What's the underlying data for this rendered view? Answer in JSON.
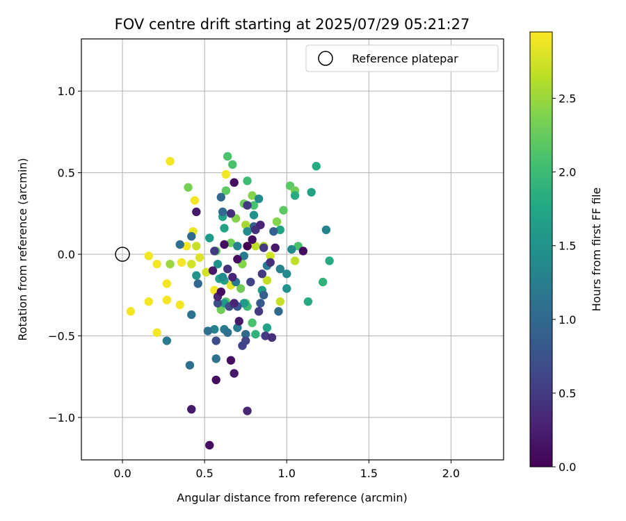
{
  "chart_data": {
    "type": "scatter",
    "title": "FOV centre drift starting at 2025/07/29 05:21:27",
    "xlabel": "Angular distance from reference (arcmin)",
    "ylabel": "Rotation from reference (arcmin)",
    "xlim": [
      -0.25,
      2.32
    ],
    "ylim": [
      -1.26,
      1.32
    ],
    "x_ticks": [
      0.0,
      0.5,
      1.0,
      1.5,
      2.0
    ],
    "x_tick_labels": [
      "0.0",
      "0.5",
      "1.0",
      "1.5",
      "2.0"
    ],
    "y_ticks": [
      -1.0,
      -0.5,
      0.0,
      0.5,
      1.0
    ],
    "y_tick_labels": [
      "−1.0",
      "−0.5",
      "0.0",
      "0.5",
      "1.0"
    ],
    "grid": true,
    "legend": {
      "placement": "top-right",
      "entries": [
        "Reference platepar"
      ]
    },
    "reference_point": {
      "x": 0.0,
      "y": 0.0,
      "style": "open-circle"
    },
    "colorbar": {
      "label": "Hours from first FF file",
      "colormap": "viridis",
      "range": [
        0.0,
        2.95
      ],
      "ticks": [
        0.0,
        0.5,
        1.0,
        1.5,
        2.0,
        2.5
      ],
      "tick_labels": [
        "0.0",
        "0.5",
        "1.0",
        "1.5",
        "2.0",
        "2.5"
      ]
    },
    "points": [
      [
        0.29,
        0.57,
        2.9
      ],
      [
        0.16,
        -0.01,
        2.9
      ],
      [
        0.21,
        -0.06,
        2.9
      ],
      [
        0.27,
        -0.18,
        2.9
      ],
      [
        0.16,
        -0.29,
        2.9
      ],
      [
        0.27,
        -0.28,
        2.9
      ],
      [
        0.35,
        -0.31,
        2.9
      ],
      [
        0.05,
        -0.35,
        2.9
      ],
      [
        0.21,
        -0.48,
        2.9
      ],
      [
        0.36,
        -0.05,
        2.9
      ],
      [
        0.39,
        0.05,
        2.9
      ],
      [
        0.43,
        0.14,
        2.85
      ],
      [
        0.44,
        0.33,
        2.9
      ],
      [
        0.63,
        0.49,
        2.9
      ],
      [
        0.56,
        -0.22,
        2.9
      ],
      [
        0.66,
        -0.19,
        2.85
      ],
      [
        0.47,
        -0.02,
        2.8
      ],
      [
        0.51,
        -0.11,
        2.75
      ],
      [
        0.42,
        -0.06,
        2.75
      ],
      [
        0.45,
        0.05,
        2.7
      ],
      [
        0.29,
        -0.06,
        2.5
      ],
      [
        0.4,
        0.41,
        2.35
      ],
      [
        0.53,
        0.1,
        2.5
      ],
      [
        0.69,
        0.22,
        2.4
      ],
      [
        0.75,
        0.18,
        2.55
      ],
      [
        0.81,
        0.05,
        2.65
      ],
      [
        0.86,
        0.05,
        2.6
      ],
      [
        0.88,
        -0.16,
        2.7
      ],
      [
        0.9,
        -0.01,
        2.75
      ],
      [
        0.96,
        -0.29,
        2.7
      ],
      [
        1.05,
        -0.04,
        2.65
      ],
      [
        0.94,
        0.2,
        2.4
      ],
      [
        1.02,
        0.42,
        2.2
      ],
      [
        1.05,
        0.39,
        2.3
      ],
      [
        0.74,
        0.31,
        2.3
      ],
      [
        0.79,
        0.36,
        2.4
      ],
      [
        0.66,
        0.07,
        2.3
      ],
      [
        0.73,
        -0.06,
        2.4
      ],
      [
        0.72,
        -0.21,
        2.3
      ],
      [
        0.6,
        -0.34,
        2.3
      ],
      [
        0.63,
        -0.29,
        2.2
      ],
      [
        0.75,
        -0.3,
        2.2
      ],
      [
        0.79,
        -0.42,
        2.1
      ],
      [
        0.76,
        -0.32,
        2.0
      ],
      [
        0.57,
        0.02,
        2.2
      ],
      [
        0.63,
        0.39,
        2.2
      ],
      [
        0.64,
        0.6,
        2.1
      ],
      [
        0.67,
        0.55,
        2.1
      ],
      [
        0.76,
        0.45,
        2.0
      ],
      [
        0.8,
        0.3,
        2.1
      ],
      [
        0.98,
        0.27,
        2.2
      ],
      [
        1.07,
        0.05,
        2.1
      ],
      [
        1.18,
        0.54,
        1.8
      ],
      [
        1.13,
        -0.29,
        1.8
      ],
      [
        1.22,
        -0.17,
        1.9
      ],
      [
        1.26,
        -0.04,
        1.8
      ],
      [
        1.15,
        0.38,
        1.7
      ],
      [
        1.05,
        0.36,
        1.8
      ],
      [
        0.96,
        0.15,
        1.7
      ],
      [
        0.9,
        -0.05,
        1.6
      ],
      [
        0.85,
        -0.22,
        1.6
      ],
      [
        0.81,
        -0.49,
        1.9
      ],
      [
        0.88,
        -0.45,
        1.7
      ],
      [
        0.62,
        -0.3,
        1.6
      ],
      [
        0.74,
        -0.3,
        1.6
      ],
      [
        0.59,
        -0.15,
        1.7
      ],
      [
        0.62,
        -0.16,
        1.7
      ],
      [
        0.61,
        0.23,
        1.7
      ],
      [
        0.62,
        0.16,
        1.7
      ],
      [
        0.53,
        0.1,
        1.6
      ],
      [
        0.45,
        -0.13,
        1.5
      ],
      [
        0.58,
        -0.06,
        1.5
      ],
      [
        0.61,
        -0.14,
        1.4
      ],
      [
        0.76,
        0.14,
        1.4
      ],
      [
        0.8,
        0.24,
        1.5
      ],
      [
        0.83,
        0.34,
        1.4
      ],
      [
        1.03,
        0.03,
        1.4
      ],
      [
        1.0,
        -0.12,
        1.4
      ],
      [
        1.0,
        -0.21,
        1.5
      ],
      [
        0.96,
        -0.09,
        1.3
      ],
      [
        1.24,
        0.15,
        1.3
      ],
      [
        0.88,
        -0.07,
        1.2
      ],
      [
        0.69,
        -0.17,
        1.2
      ],
      [
        0.74,
        -0.01,
        1.2
      ],
      [
        0.7,
        0.05,
        1.3
      ],
      [
        0.56,
        -0.46,
        1.3
      ],
      [
        0.62,
        -0.46,
        1.2
      ],
      [
        0.7,
        -0.45,
        1.2
      ],
      [
        0.52,
        -0.47,
        1.1
      ],
      [
        0.64,
        -0.48,
        1.1
      ],
      [
        0.75,
        -0.49,
        1.0
      ],
      [
        0.57,
        -0.64,
        1.1
      ],
      [
        0.42,
        -0.37,
        1.1
      ],
      [
        0.27,
        -0.53,
        1.2
      ],
      [
        0.41,
        -0.68,
        1.1
      ],
      [
        0.46,
        -0.18,
        1.0
      ],
      [
        0.42,
        0.11,
        1.0
      ],
      [
        0.35,
        0.06,
        1.1
      ],
      [
        0.6,
        0.35,
        1.0
      ],
      [
        0.61,
        0.26,
        1.0
      ],
      [
        0.8,
        0.17,
        0.9
      ],
      [
        0.92,
        0.14,
        0.9
      ],
      [
        0.95,
        -0.35,
        1.0
      ],
      [
        0.86,
        -0.25,
        0.9
      ],
      [
        0.84,
        -0.3,
        0.8
      ],
      [
        0.7,
        -0.32,
        0.8
      ],
      [
        0.65,
        -0.32,
        0.7
      ],
      [
        0.58,
        -0.3,
        0.7
      ],
      [
        0.57,
        -0.53,
        0.7
      ],
      [
        0.73,
        -0.56,
        0.6
      ],
      [
        0.75,
        -0.53,
        0.6
      ],
      [
        0.87,
        -0.5,
        0.5
      ],
      [
        0.91,
        -0.51,
        0.4
      ],
      [
        0.83,
        -0.35,
        0.5
      ],
      [
        0.78,
        -0.17,
        0.6
      ],
      [
        0.85,
        -0.12,
        0.5
      ],
      [
        0.9,
        -0.05,
        0.4
      ],
      [
        0.86,
        0.04,
        0.5
      ],
      [
        0.81,
        0.15,
        0.4
      ],
      [
        0.84,
        0.18,
        0.3
      ],
      [
        0.76,
        0.3,
        0.5
      ],
      [
        0.66,
        0.25,
        0.4
      ],
      [
        0.56,
        0.02,
        0.5
      ],
      [
        0.64,
        -0.09,
        0.4
      ],
      [
        0.67,
        -0.14,
        0.3
      ],
      [
        0.58,
        -0.26,
        0.3
      ],
      [
        0.68,
        -0.3,
        0.3
      ],
      [
        0.71,
        -0.41,
        0.2
      ],
      [
        0.42,
        -0.95,
        0.2
      ],
      [
        0.53,
        -1.17,
        0.1
      ],
      [
        0.57,
        -0.77,
        0.1
      ],
      [
        0.66,
        -0.65,
        0.1
      ],
      [
        0.68,
        -0.73,
        0.2
      ],
      [
        0.76,
        -0.96,
        0.3
      ],
      [
        0.45,
        0.26,
        0.2
      ],
      [
        0.68,
        0.44,
        0.1
      ],
      [
        1.1,
        0.02,
        0.1
      ],
      [
        0.93,
        0.04,
        0.2
      ],
      [
        0.62,
        0.06,
        0.1
      ],
      [
        0.55,
        -0.1,
        0.2
      ],
      [
        0.6,
        -0.23,
        0.1
      ],
      [
        0.7,
        -0.03,
        0.1
      ],
      [
        0.76,
        0.05,
        0.0
      ],
      [
        0.79,
        0.09,
        0.1
      ]
    ]
  }
}
